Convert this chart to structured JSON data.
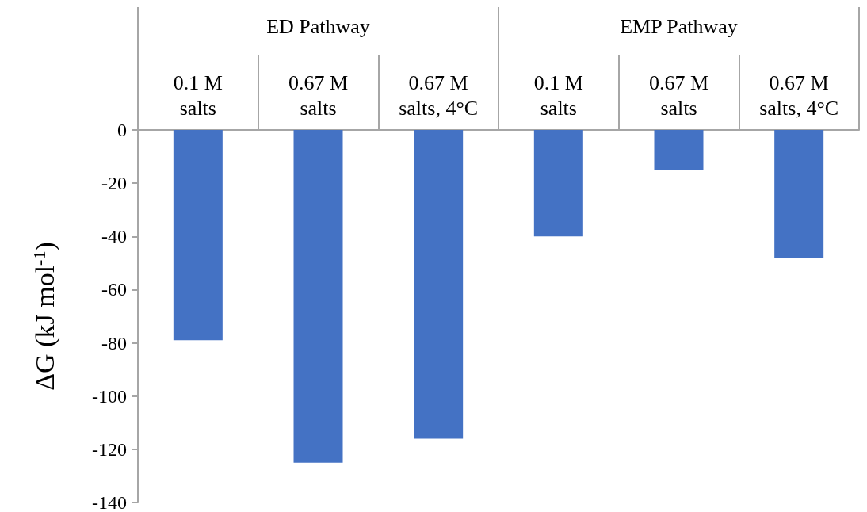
{
  "chart_data": {
    "type": "bar",
    "ylabel": "ΔG (kJ mol$^{-1}$)",
    "categories": [
      "0.1 M salts",
      "0.67 M salts",
      "0.67 M salts, 4°C",
      "0.1 M salts",
      "0.67 M salts",
      "0.67 M salts, 4°C"
    ],
    "values": [
      -79,
      -125,
      -116,
      -40,
      -15,
      -48
    ],
    "color": "#4472c4",
    "annotations": [
      "ED Pathway",
      "EMP Pathway"
    ],
    "ylim": [
      -140,
      0
    ],
    "yticks": [
      -140,
      -120,
      -100,
      -80,
      -60,
      -40,
      -20,
      0
    ]
  }
}
